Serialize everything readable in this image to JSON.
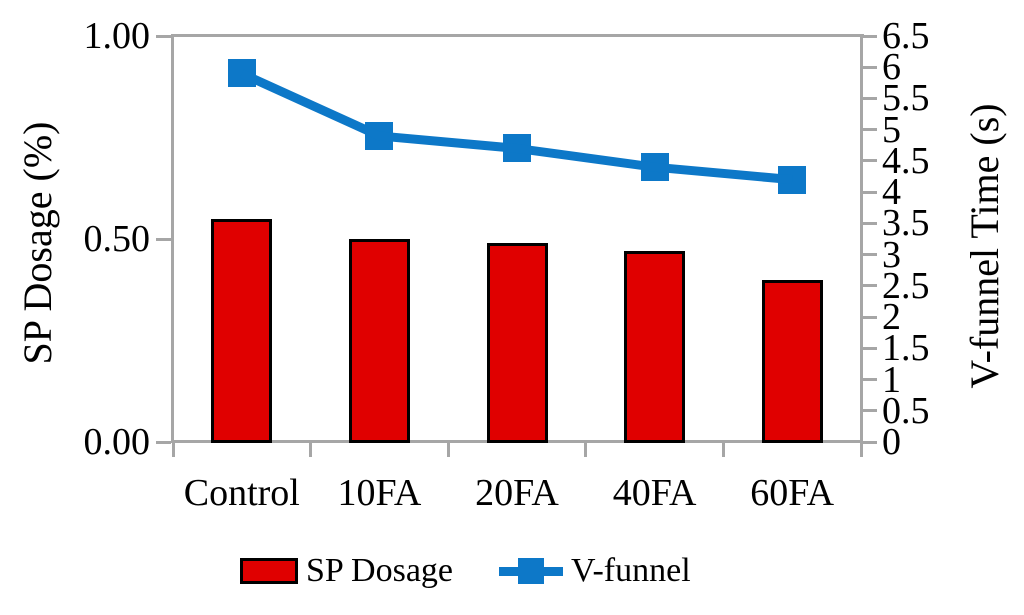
{
  "figure": {
    "background": "#ffffff",
    "axis_color": "#a6a6a6",
    "text_color": "#000000"
  },
  "chart_data": {
    "type": "combo-bar-line",
    "categories": [
      "Control",
      "10FA",
      "20FA",
      "40FA",
      "60FA"
    ],
    "series": [
      {
        "name": "SP Dosage",
        "type": "bar",
        "axis": "left",
        "values": [
          0.55,
          0.5,
          0.49,
          0.47,
          0.4
        ],
        "fill": "#e00000",
        "stroke": "#000000"
      },
      {
        "name": "V-funnel",
        "type": "line",
        "axis": "right",
        "values": [
          5.9,
          4.9,
          4.7,
          4.4,
          4.2
        ],
        "color": "#0d78c8",
        "marker": "square"
      }
    ],
    "left_axis": {
      "label": "SP Dosage (%)",
      "min": 0,
      "max": 1,
      "tick_values": [
        0,
        0.5,
        1
      ],
      "tick_labels": [
        "0.00",
        "0.50",
        "1.00"
      ]
    },
    "right_axis": {
      "label": "V-funnel Time (s)",
      "min": 0,
      "max": 6.5,
      "tick_step": 0.5,
      "tick_labels": [
        "0",
        "0.5",
        "1",
        "1.5",
        "2",
        "2.5",
        "3",
        "3.5",
        "4",
        "4.5",
        "5",
        "5.5",
        "6",
        "6.5"
      ]
    },
    "legend": {
      "position": "bottom",
      "entries": [
        "SP Dosage",
        "V-funnel"
      ]
    },
    "grid": false
  }
}
